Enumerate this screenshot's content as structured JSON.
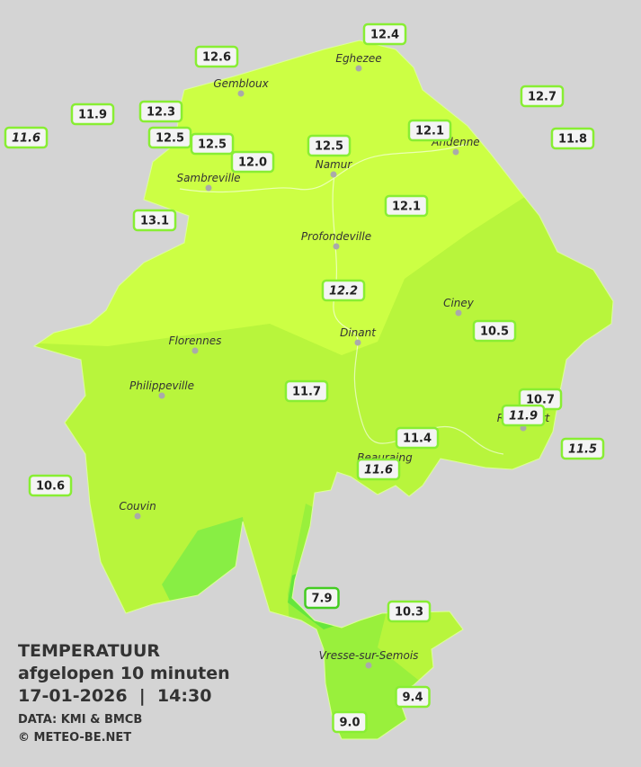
{
  "legend": {
    "title": "TEMPERATUUR",
    "subtitle": "afgelopen 10 minuten",
    "datetime": "17-01-2026  |  14:30",
    "source": "DATA: KMI & BMCB",
    "credit": "© METEO-BE.NET"
  },
  "towns": [
    "Eghezee",
    "Gembloux",
    "Andenne",
    "Namur",
    "Sambreville",
    "Profondeville",
    "Ciney",
    "Dinant",
    "Florennes",
    "Philippeville",
    "Beauraing",
    "Rochefort",
    "Couvin",
    "Vresse-sur-Semois"
  ],
  "stations": [
    {
      "label": "12.4",
      "italic": false
    },
    {
      "label": "12.6",
      "italic": false
    },
    {
      "label": "11.9",
      "italic": false
    },
    {
      "label": "12.3",
      "italic": false
    },
    {
      "label": "12.7",
      "italic": false
    },
    {
      "label": "11.6",
      "italic": true
    },
    {
      "label": "12.5",
      "italic": false
    },
    {
      "label": "12.5",
      "italic": false
    },
    {
      "label": "12.5",
      "italic": false
    },
    {
      "label": "12.1",
      "italic": false
    },
    {
      "label": "11.8",
      "italic": false
    },
    {
      "label": "12.0",
      "italic": false
    },
    {
      "label": "13.1",
      "italic": false
    },
    {
      "label": "12.1",
      "italic": false
    },
    {
      "label": "12.2",
      "italic": true
    },
    {
      "label": "10.5",
      "italic": false
    },
    {
      "label": "11.7",
      "italic": false
    },
    {
      "label": "10.7",
      "italic": false
    },
    {
      "label": "11.9",
      "italic": true
    },
    {
      "label": "11.4",
      "italic": false
    },
    {
      "label": "11.6",
      "italic": true
    },
    {
      "label": "11.5",
      "italic": true
    },
    {
      "label": "10.6",
      "italic": false
    },
    {
      "label": "7.9",
      "italic": false
    },
    {
      "label": "10.3",
      "italic": false
    },
    {
      "label": "9.4",
      "italic": false
    },
    {
      "label": "9.0",
      "italic": false
    }
  ]
}
